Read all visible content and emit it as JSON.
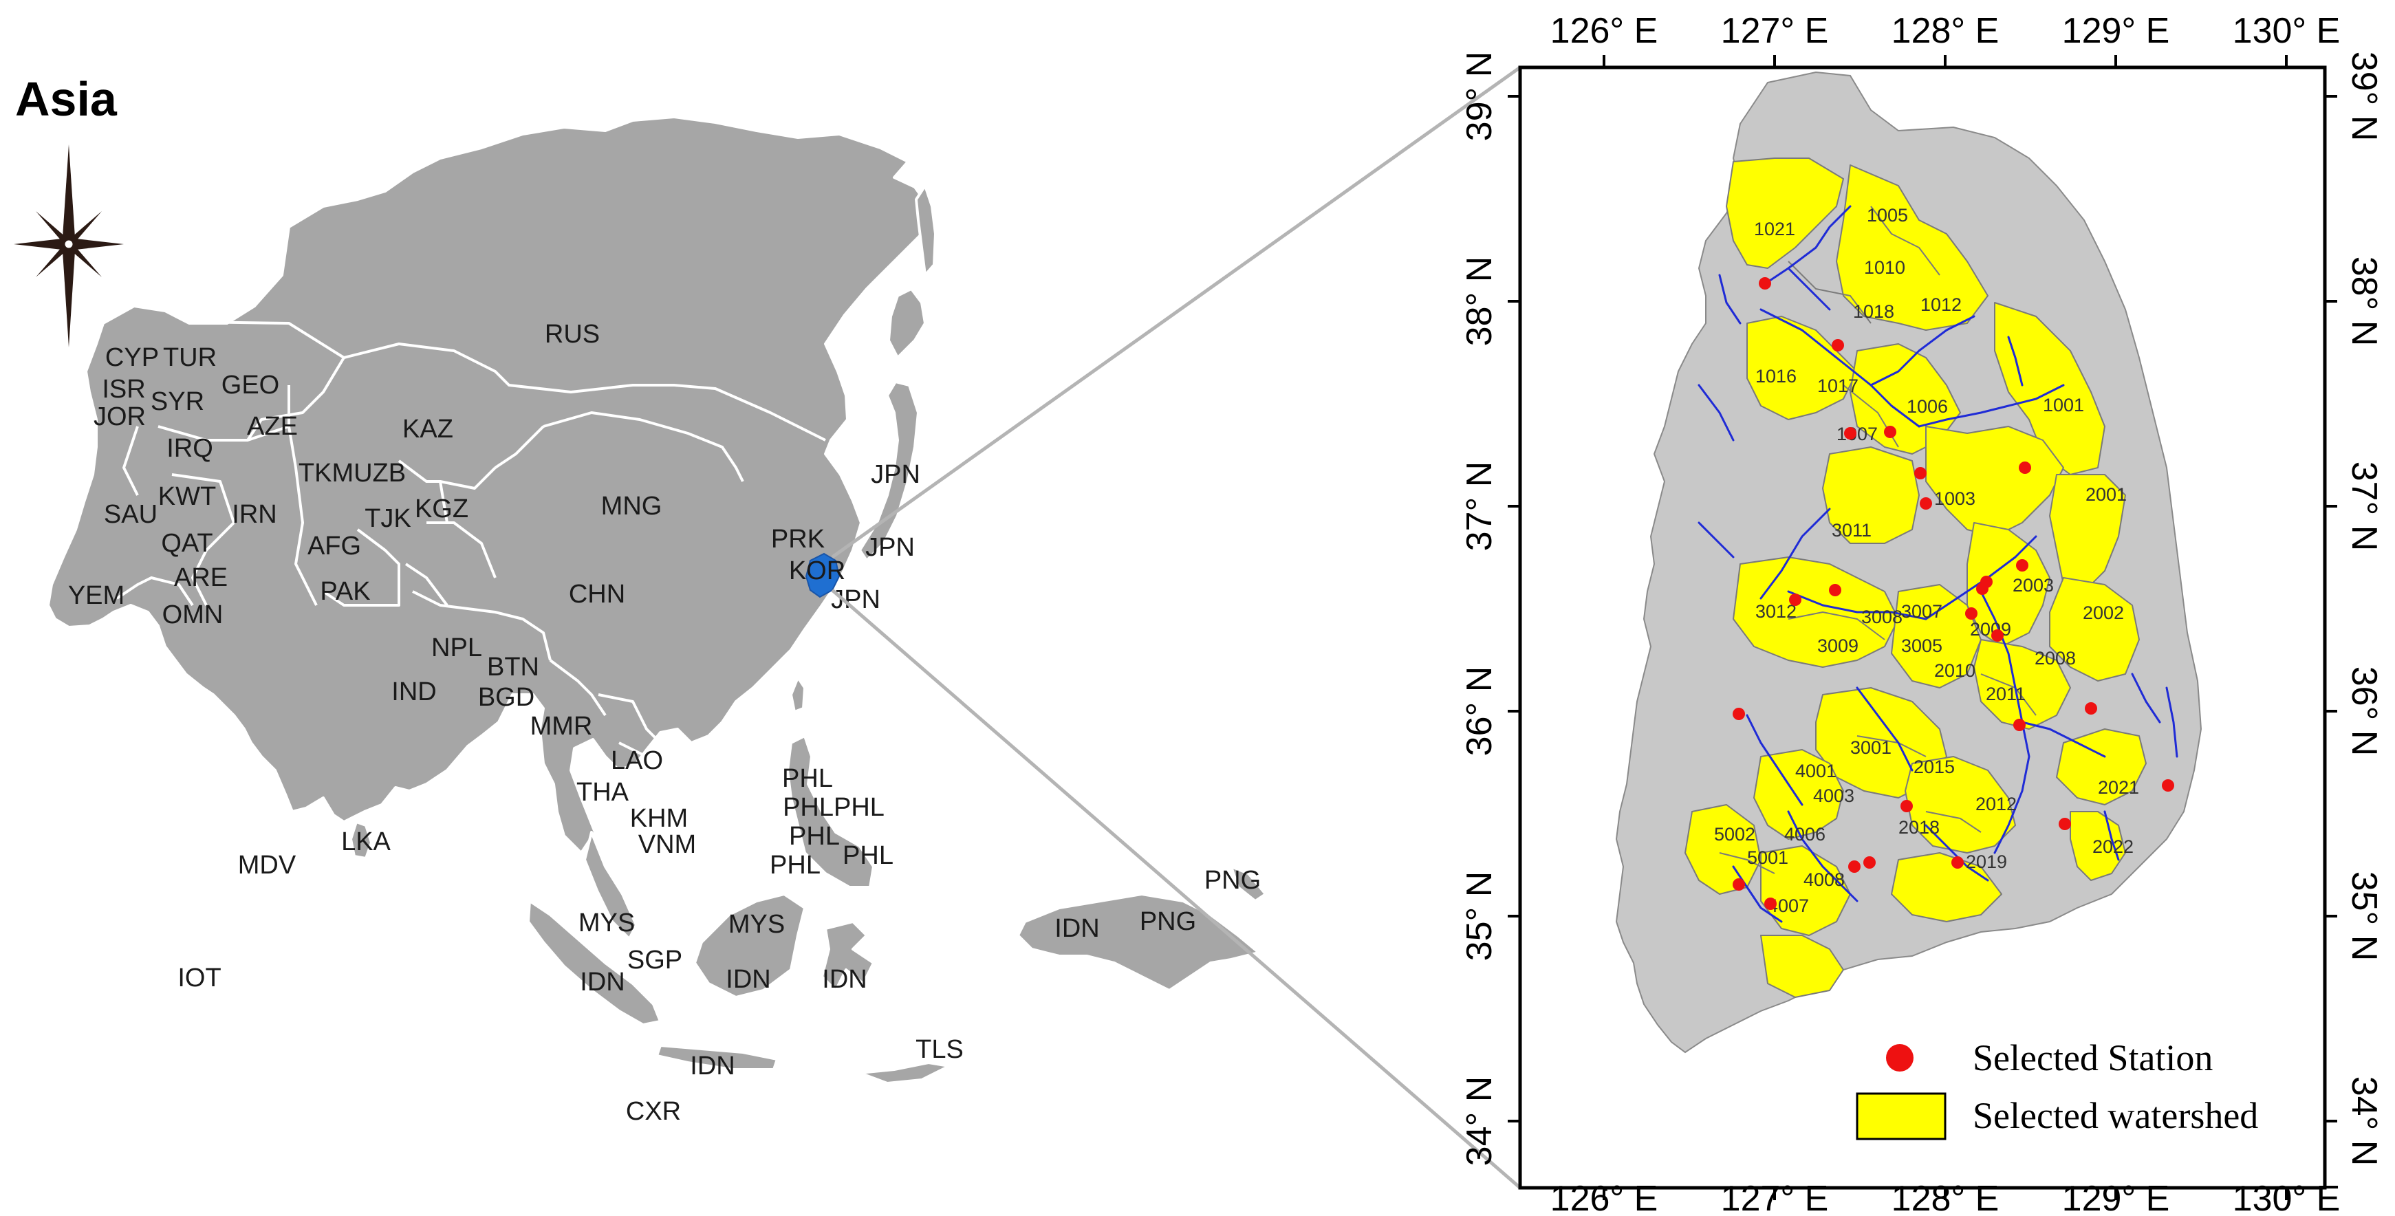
{
  "title": "Asia",
  "colors": {
    "land": "#a6a6a6",
    "border": "#ffffff",
    "korea_highlight": "#1f6fd1",
    "watershed": "#ffff00",
    "station": "#ee1111",
    "river": "#1f2bd6",
    "connector": "#b4b4b4"
  },
  "icons": {
    "compass": "compass-rose-icon"
  },
  "country_labels": [
    {
      "id": "rus",
      "code": "RUS"
    },
    {
      "id": "kaz",
      "code": "KAZ"
    },
    {
      "id": "mng",
      "code": "MNG"
    },
    {
      "id": "chn",
      "code": "CHN"
    },
    {
      "id": "ind",
      "code": "IND"
    },
    {
      "id": "cyp",
      "code": "CYP"
    },
    {
      "id": "tur",
      "code": "TUR"
    },
    {
      "id": "isr",
      "code": "ISR"
    },
    {
      "id": "syr",
      "code": "SYR"
    },
    {
      "id": "geo",
      "code": "GEO"
    },
    {
      "id": "jor",
      "code": "JOR"
    },
    {
      "id": "aze",
      "code": "AZE"
    },
    {
      "id": "irq",
      "code": "IRQ"
    },
    {
      "id": "tkm",
      "code": "TKMUZB"
    },
    {
      "id": "kwt",
      "code": "KWT"
    },
    {
      "id": "sau",
      "code": "SAU"
    },
    {
      "id": "irn",
      "code": "IRN"
    },
    {
      "id": "kgz",
      "code": "KGZ"
    },
    {
      "id": "tjk",
      "code": "TJK"
    },
    {
      "id": "qat",
      "code": "QAT"
    },
    {
      "id": "afg",
      "code": "AFG"
    },
    {
      "id": "are",
      "code": "ARE"
    },
    {
      "id": "yem",
      "code": "YEM"
    },
    {
      "id": "pak",
      "code": "PAK"
    },
    {
      "id": "omn",
      "code": "OMN"
    },
    {
      "id": "npl",
      "code": "NPL"
    },
    {
      "id": "btn",
      "code": "BTN"
    },
    {
      "id": "bgd",
      "code": "BGD"
    },
    {
      "id": "mmr",
      "code": "MMR"
    },
    {
      "id": "lao",
      "code": "LAO"
    },
    {
      "id": "tha",
      "code": "THA"
    },
    {
      "id": "khm",
      "code": "KHM"
    },
    {
      "id": "vnm",
      "code": "VNM"
    },
    {
      "id": "lka",
      "code": "LKA"
    },
    {
      "id": "mdv",
      "code": "MDV"
    },
    {
      "id": "iot",
      "code": "IOT"
    },
    {
      "id": "prk",
      "code": "PRK"
    },
    {
      "id": "kor",
      "code": "KOR"
    },
    {
      "id": "jpn1",
      "code": "JPN"
    },
    {
      "id": "jpn2",
      "code": "JPN"
    },
    {
      "id": "jpn3",
      "code": "JPN"
    },
    {
      "id": "phl1",
      "code": "PHL"
    },
    {
      "id": "phl2",
      "code": "PHLPHL"
    },
    {
      "id": "phl3",
      "code": "PHL"
    },
    {
      "id": "phl4",
      "code": "PHL"
    },
    {
      "id": "phl5",
      "code": "PHL"
    },
    {
      "id": "mys1",
      "code": "MYS"
    },
    {
      "id": "mys2",
      "code": "MYS"
    },
    {
      "id": "sgp",
      "code": "SGP"
    },
    {
      "id": "idn1",
      "code": "IDN"
    },
    {
      "id": "idn2",
      "code": "IDN"
    },
    {
      "id": "idn3",
      "code": "IDN"
    },
    {
      "id": "idn4",
      "code": "IDN"
    },
    {
      "id": "idn5",
      "code": "IDN"
    },
    {
      "id": "png1",
      "code": "PNG"
    },
    {
      "id": "png2",
      "code": "PNG"
    },
    {
      "id": "tls",
      "code": "TLS"
    },
    {
      "id": "cxr",
      "code": "CXR"
    }
  ],
  "axis_top": [
    "126° E",
    "127° E",
    "128° E",
    "129° E",
    "130° E"
  ],
  "axis_bottom": [
    "126° E",
    "127° E",
    "128° E",
    "129° E",
    "130° E"
  ],
  "axis_left": [
    "39° N",
    "38° N",
    "37° N",
    "36° N",
    "35° N",
    "34° N"
  ],
  "axis_right": [
    "39° N",
    "38° N",
    "37° N",
    "36° N",
    "35° N",
    "34° N"
  ],
  "watershed_labels": [
    "1021",
    "1005",
    "1010",
    "1018",
    "1012",
    "1016",
    "1017",
    "1006",
    "1001",
    "1007",
    "1003",
    "2001",
    "3011",
    "2003",
    "3012",
    "3008",
    "3007",
    "2002",
    "3009",
    "3005",
    "2009",
    "2008",
    "2010",
    "2011",
    "3001",
    "2015",
    "4001",
    "2021",
    "4003",
    "2012",
    "5002",
    "4006",
    "2018",
    "2022",
    "5001",
    "4008",
    "2019",
    "4007"
  ],
  "legend": {
    "station_label": "Selected Station",
    "watershed_label": "Selected watershed"
  }
}
